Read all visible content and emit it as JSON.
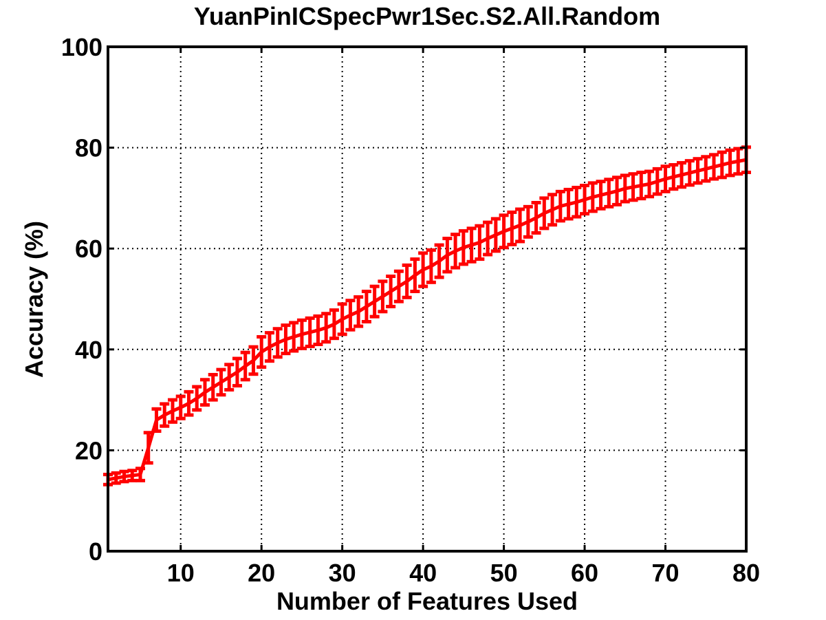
{
  "chart_data": {
    "type": "line",
    "title": "YuanPinICSpecPwr1Sec.S2.All.Random",
    "xlabel": "Number of Features Used",
    "ylabel": "Accuracy (%)",
    "xlim": [
      1,
      80
    ],
    "ylim": [
      0,
      100
    ],
    "xticks": [
      10,
      20,
      30,
      40,
      50,
      60,
      70,
      80
    ],
    "yticks": [
      0,
      20,
      40,
      60,
      80,
      100
    ],
    "grid": true,
    "series_color": "#ff0000",
    "series": [
      {
        "x": [
          1,
          2,
          3,
          4,
          5,
          6,
          7,
          8,
          9,
          10,
          11,
          12,
          13,
          14,
          15,
          16,
          17,
          18,
          19,
          20,
          21,
          22,
          23,
          24,
          25,
          26,
          27,
          28,
          29,
          30,
          31,
          32,
          33,
          34,
          35,
          36,
          37,
          38,
          39,
          40,
          41,
          42,
          43,
          44,
          45,
          46,
          47,
          48,
          49,
          50,
          51,
          52,
          53,
          54,
          55,
          56,
          57,
          58,
          59,
          60,
          61,
          62,
          63,
          64,
          65,
          66,
          67,
          68,
          69,
          70,
          71,
          72,
          73,
          74,
          75,
          76,
          77,
          78,
          79,
          80
        ],
        "y": [
          14.2,
          14.5,
          14.8,
          15.0,
          15.2,
          20.5,
          26.0,
          27.0,
          27.8,
          28.5,
          29.3,
          30.3,
          31.5,
          32.5,
          33.5,
          34.5,
          35.5,
          36.7,
          37.8,
          39.5,
          40.5,
          41.3,
          42.0,
          42.5,
          43.0,
          43.4,
          43.8,
          44.3,
          45.0,
          46.0,
          46.8,
          47.5,
          48.5,
          49.5,
          50.5,
          51.5,
          52.5,
          53.5,
          54.7,
          55.8,
          56.5,
          57.5,
          58.7,
          59.5,
          60.2,
          60.7,
          61.2,
          62.0,
          62.7,
          63.4,
          64.0,
          64.6,
          65.3,
          66.1,
          67.0,
          67.7,
          68.4,
          68.8,
          69.2,
          69.7,
          70.2,
          70.6,
          71.0,
          71.4,
          71.9,
          72.2,
          72.5,
          72.8,
          73.3,
          73.8,
          74.2,
          74.6,
          75.0,
          75.4,
          75.8,
          76.2,
          76.6,
          77.0,
          77.3,
          77.6
        ],
        "err": [
          1.0,
          1.0,
          1.0,
          1.0,
          1.2,
          3.0,
          2.2,
          2.2,
          2.2,
          2.2,
          2.3,
          2.3,
          2.5,
          2.5,
          2.5,
          2.5,
          2.7,
          2.7,
          2.7,
          3.0,
          2.8,
          2.8,
          2.8,
          2.8,
          2.8,
          2.8,
          2.8,
          2.8,
          2.8,
          3.0,
          2.9,
          2.9,
          3.0,
          3.0,
          3.0,
          3.0,
          3.0,
          3.2,
          3.2,
          3.3,
          3.2,
          3.2,
          3.3,
          3.3,
          3.3,
          3.3,
          3.3,
          3.2,
          3.2,
          3.2,
          3.2,
          3.2,
          3.0,
          3.0,
          3.0,
          3.0,
          2.9,
          2.9,
          2.9,
          2.8,
          2.8,
          2.7,
          2.7,
          2.7,
          2.6,
          2.6,
          2.6,
          2.5,
          2.5,
          2.5,
          2.4,
          2.4,
          2.4,
          2.4,
          2.4,
          2.4,
          2.5,
          2.5,
          2.5,
          2.5
        ]
      }
    ]
  }
}
